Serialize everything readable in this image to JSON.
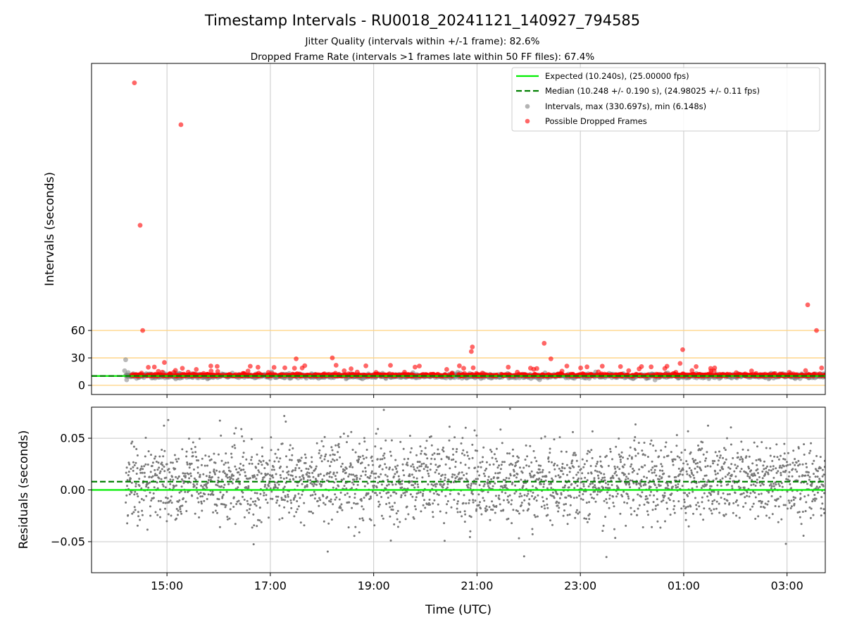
{
  "chart_data": {
    "type": "scatter",
    "title": "Timestamp Intervals - RU0018_20241121_140927_794585",
    "subtitle_lines": [
      "Jitter Quality (intervals within +/-1 frame): 82.6%",
      "Dropped Frame Rate (intervals >1 frames late within 50 FF files): 67.4%"
    ],
    "xlabel": "Time (UTC)",
    "x_ticks": [
      "15:00",
      "17:00",
      "19:00",
      "21:00",
      "23:00",
      "01:00",
      "03:00"
    ],
    "x_tick_hours": [
      15,
      17,
      19,
      21,
      23,
      25,
      27
    ],
    "xlim_hours": [
      13.54,
      27.74
    ],
    "grid": true,
    "panels": [
      {
        "name": "intervals",
        "ylabel": "Intervals (seconds)",
        "ylim": [
          -10,
          352
        ],
        "yticks": [
          0,
          30,
          60
        ],
        "reference_lines": [
          0,
          30,
          60
        ],
        "reference_line_color": "#ffd27f",
        "legend_position": "top-right",
        "legend": [
          "Expected (10.240s), (25.00000 fps)",
          "Median (10.248 +/- 0.190 s), (24.98025 +/- 0.11 fps)",
          "Intervals, max (330.697s), min (6.148s)",
          "Possible Dropped Frames"
        ],
        "expected_interval": 10.24,
        "median_interval": 10.248,
        "dropped_frames_outliers": {
          "x_hours": [
            14.37,
            15.27,
            14.48,
            14.53,
            27.4,
            27.57,
            20.91,
            20.89,
            22.3,
            22.43,
            17.5,
            18.2,
            24.98,
            24.93,
            14.95
          ],
          "y": [
            330.7,
            285,
            175,
            60,
            88,
            60,
            42,
            37,
            46,
            29,
            29,
            30,
            39,
            24,
            25
          ]
        },
        "series": [
          {
            "name": "Intervals, max (330.697s), min (6.148s)",
            "color": "#808080"
          },
          {
            "name": "Possible Dropped Frames",
            "color": "#ff0000"
          }
        ]
      },
      {
        "name": "residuals",
        "ylabel": "Residuals (seconds)",
        "ylim": [
          -0.08,
          0.08
        ],
        "yticks": [
          0.05,
          0.0,
          -0.05
        ],
        "ytick_labels": [
          "0.05",
          "0.00",
          "−0.05"
        ],
        "median_residual": 0.008,
        "expected_residual": 0.0,
        "point_color": "#777777"
      }
    ],
    "colors": {
      "expected": "#00ee00",
      "median": "#007f00",
      "grid": "#c8c8c8"
    }
  }
}
